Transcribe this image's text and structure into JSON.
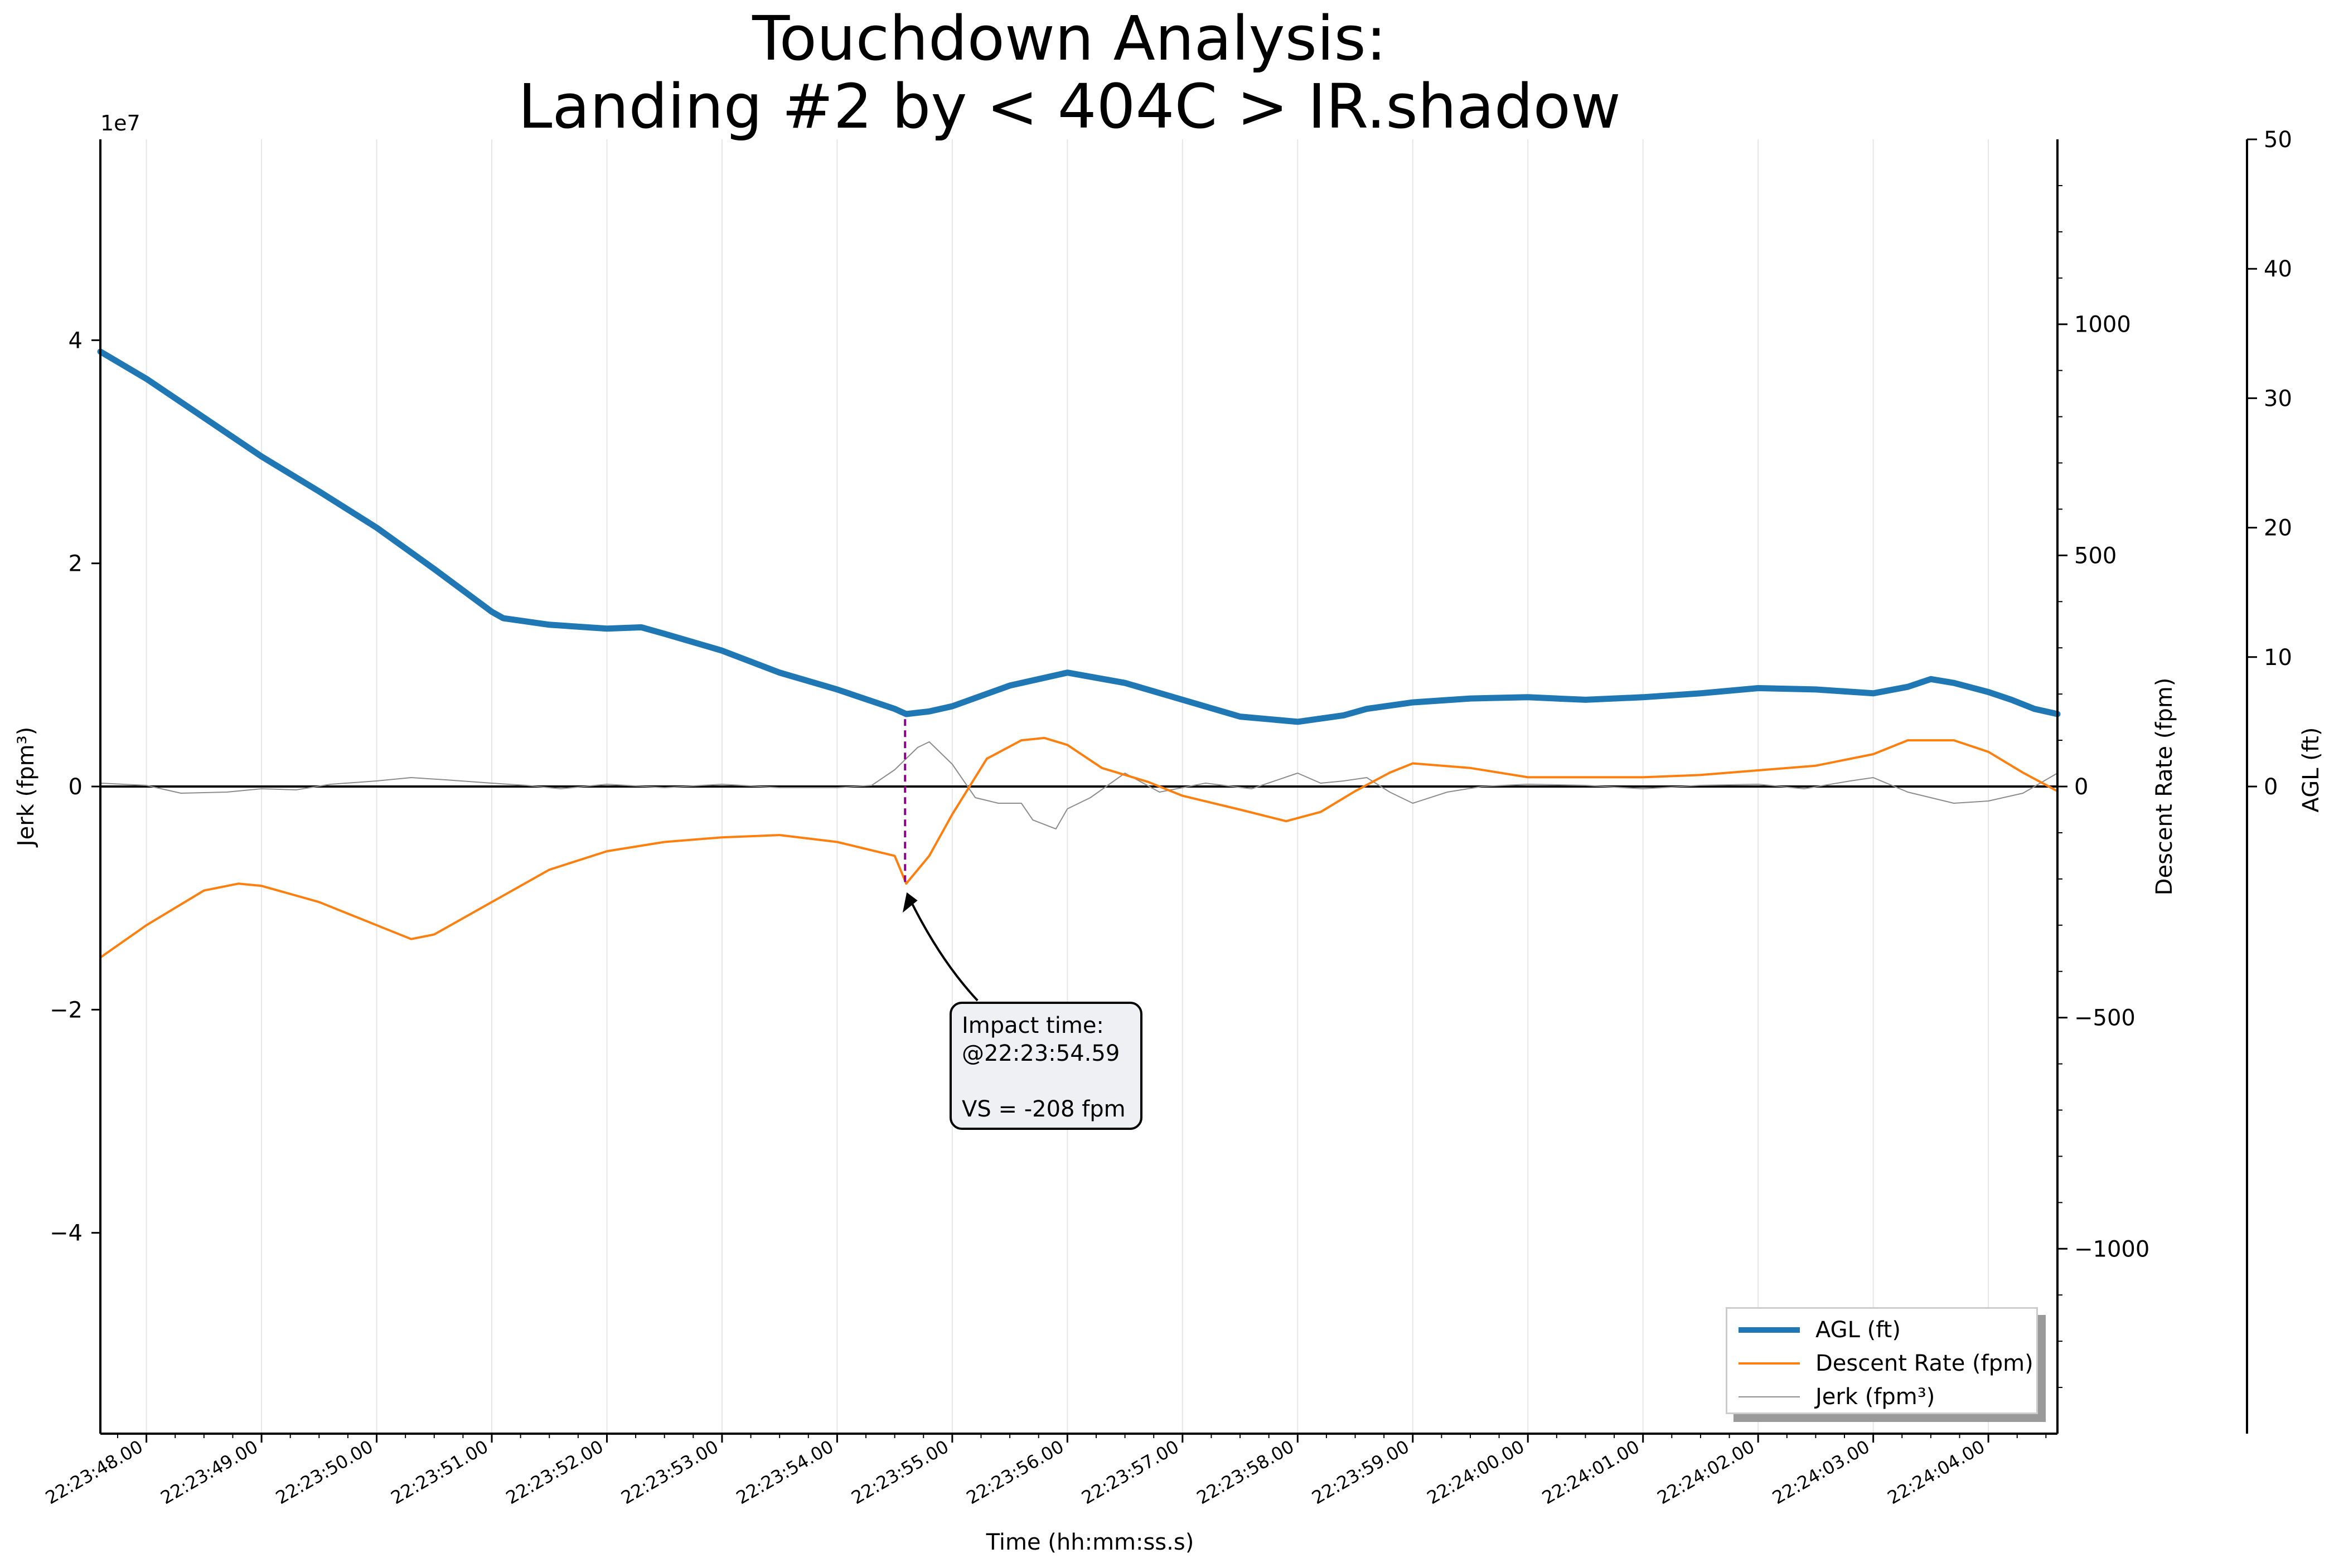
{
  "chart_data": {
    "type": "line",
    "title": [
      "Touchdown Analysis:",
      "Landing #2 by < 404C > IR.shadow"
    ],
    "xlabel": "Time (hh:mm:ss.s)",
    "x_ticks": [
      "22:23:48.00",
      "22:23:49.00",
      "22:23:50.00",
      "22:23:51.00",
      "22:23:52.00",
      "22:23:53.00",
      "22:23:54.00",
      "22:23:55.00",
      "22:23:56.00",
      "22:23:57.00",
      "22:23:58.00",
      "22:23:59.00",
      "22:24:00.00",
      "22:24:01.00",
      "22:24:02.00",
      "22:24:03.00",
      "22:24:04.00"
    ],
    "xlim": [
      47.6,
      64.6
    ],
    "grid": "vertical",
    "legend_placement": "lower right",
    "axes": {
      "jerk": {
        "label": "Jerk (fpm³)",
        "ylim": [
          -58000000,
          58000000
        ],
        "ticks": [
          -40000000,
          -20000000,
          0,
          20000000,
          40000000
        ],
        "tick_labels": [
          "−4",
          "−2",
          "0",
          "2",
          "4"
        ],
        "offset_label": "1e7"
      },
      "descent": {
        "label": "Descent Rate (fpm)",
        "ylim": [
          -1400,
          1400
        ],
        "ticks": [
          -1000,
          -500,
          0,
          500,
          1000
        ],
        "tick_labels": [
          "−1000",
          "−500",
          "0",
          "500",
          "1000"
        ]
      },
      "agl": {
        "label": "AGL (ft)",
        "ylim": [
          -50,
          50
        ],
        "ticks": [
          0,
          10,
          20,
          30,
          40,
          50
        ],
        "tick_labels": [
          "0",
          "10",
          "20",
          "30",
          "40",
          "50"
        ]
      }
    },
    "series": [
      {
        "name": "AGL (ft)",
        "axis": "agl",
        "color": "#1f77b4",
        "x": [
          47.6,
          48.0,
          48.5,
          49.0,
          49.5,
          50.0,
          50.5,
          51.0,
          51.1,
          51.5,
          52.0,
          52.3,
          52.5,
          53.0,
          53.5,
          54.0,
          54.5,
          54.6,
          54.8,
          55.0,
          55.5,
          56.0,
          56.5,
          57.0,
          57.5,
          58.0,
          58.4,
          58.6,
          59.0,
          59.5,
          60.0,
          60.5,
          61.0,
          61.5,
          62.0,
          62.5,
          63.0,
          63.3,
          63.5,
          63.7,
          64.0,
          64.2,
          64.4,
          64.6
        ],
        "y": [
          33.6,
          31.5,
          28.5,
          25.5,
          22.8,
          20.0,
          16.8,
          13.5,
          13.0,
          12.5,
          12.2,
          12.3,
          11.8,
          10.5,
          8.8,
          7.5,
          6.0,
          5.6,
          5.8,
          6.2,
          7.8,
          8.8,
          8.0,
          6.7,
          5.4,
          5.0,
          5.5,
          6.0,
          6.5,
          6.8,
          6.9,
          6.7,
          6.9,
          7.2,
          7.6,
          7.5,
          7.2,
          7.7,
          8.3,
          8.0,
          7.3,
          6.7,
          6.0,
          5.6
        ]
      },
      {
        "name": "Descent Rate (fpm)",
        "axis": "descent",
        "color": "#ff7f0e",
        "x": [
          47.6,
          48.0,
          48.5,
          48.8,
          49.0,
          49.5,
          50.0,
          50.3,
          50.5,
          51.0,
          51.5,
          52.0,
          52.5,
          53.0,
          53.5,
          54.0,
          54.5,
          54.6,
          54.8,
          55.0,
          55.3,
          55.6,
          55.8,
          56.0,
          56.3,
          56.7,
          57.0,
          57.5,
          57.9,
          58.2,
          58.5,
          58.8,
          59.0,
          59.5,
          60.0,
          60.5,
          61.0,
          61.5,
          62.0,
          62.5,
          63.0,
          63.3,
          63.7,
          64.0,
          64.3,
          64.6
        ],
        "y": [
          -370,
          -300,
          -225,
          -210,
          -215,
          -250,
          -300,
          -330,
          -320,
          -250,
          -180,
          -140,
          -120,
          -110,
          -105,
          -120,
          -150,
          -210,
          -150,
          -60,
          60,
          100,
          105,
          90,
          40,
          10,
          -20,
          -50,
          -75,
          -55,
          -10,
          30,
          50,
          40,
          20,
          20,
          20,
          25,
          35,
          45,
          70,
          100,
          100,
          75,
          30,
          -10
        ]
      },
      {
        "name": "Jerk (fpm³)",
        "axis": "jerk",
        "color": "#8c8c8c",
        "x": [
          47.6,
          48.0,
          48.3,
          48.7,
          49.0,
          49.3,
          49.6,
          50.0,
          50.3,
          50.6,
          51.0,
          51.3,
          51.6,
          52.0,
          52.5,
          53.0,
          53.5,
          54.0,
          54.3,
          54.5,
          54.7,
          54.8,
          55.0,
          55.2,
          55.4,
          55.6,
          55.7,
          55.9,
          56.0,
          56.2,
          56.5,
          56.8,
          57.2,
          57.6,
          58.0,
          58.2,
          58.4,
          58.6,
          58.8,
          59.0,
          59.3,
          59.6,
          60.0,
          60.5,
          61.0,
          61.5,
          62.0,
          62.4,
          62.8,
          63.0,
          63.3,
          63.7,
          64.0,
          64.3,
          64.6
        ],
        "y": [
          300000,
          100000,
          -600000,
          -500000,
          -200000,
          -300000,
          200000,
          500000,
          800000,
          600000,
          300000,
          100000,
          -200000,
          200000,
          -100000,
          200000,
          -100000,
          -100000,
          100000,
          1500000,
          3500000,
          4000000,
          2000000,
          -1000000,
          -1500000,
          -1500000,
          -3000000,
          -3800000,
          -2000000,
          -1000000,
          1200000,
          -500000,
          300000,
          -200000,
          1200000,
          300000,
          500000,
          800000,
          -500000,
          -1500000,
          -500000,
          0,
          200000,
          100000,
          -200000,
          100000,
          200000,
          -200000,
          500000,
          800000,
          -500000,
          -1500000,
          -1300000,
          -600000,
          1200000
        ]
      }
    ],
    "annotation": {
      "x": 54.59,
      "descent_value": -208,
      "text": [
        "Impact time:",
        "@22:23:54.59",
        "",
        "VS = -208 fpm"
      ]
    }
  }
}
